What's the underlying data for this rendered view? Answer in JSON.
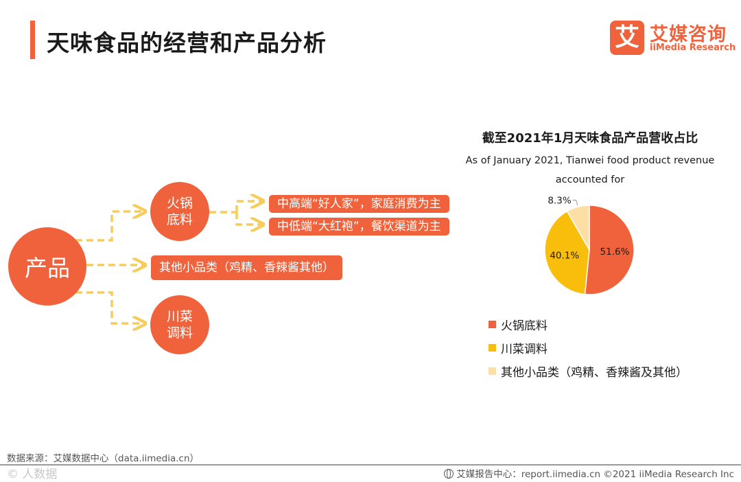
{
  "header": {
    "title": "天味食品的经营和产品分析",
    "logo_glyph": "艾",
    "logo_cn": "艾媒咨询",
    "logo_en": "iiMedia Research"
  },
  "diagram": {
    "root": "产品",
    "hotpot_line1": "火锅",
    "hotpot_line2": "底料",
    "hotpot_high": "中高端“好人家”，家庭消费为主",
    "hotpot_low": "中低端“大红袍”，餐饮渠道为主",
    "other": "其他小品类（鸡精、香辣酱其他）",
    "sichuan_line1": "川菜",
    "sichuan_line2": "调料"
  },
  "colors": {
    "accent": "#f0623b",
    "connector": "#f7cc5a",
    "hotpot": "#f0623b",
    "sichuan": "#f9bd0b",
    "other": "#fddfa6"
  },
  "chart_data": {
    "type": "pie",
    "title": "截至2021年1月天味食品产品营收占比",
    "subtitle_line1": "As of January 2021, Tianwei food product revenue",
    "subtitle_line2": "accounted for",
    "categories": [
      "火锅底料",
      "川菜调料",
      "其他小品类（鸡精、香辣酱及其他）"
    ],
    "values": [
      51.6,
      40.1,
      8.3
    ],
    "value_labels": [
      "51.6%",
      "40.1%",
      "8.3%"
    ],
    "colors": [
      "#f0623b",
      "#f9bd0b",
      "#fddfa6"
    ],
    "legend_position": "bottom"
  },
  "footer": {
    "source": "数据来源：艾媒数据中心（data.iimedia.cn）",
    "watermark": "© 人数据",
    "right": "艾媒报告中心：report.iimedia.cn   ©2021  iiMedia Research  Inc"
  }
}
